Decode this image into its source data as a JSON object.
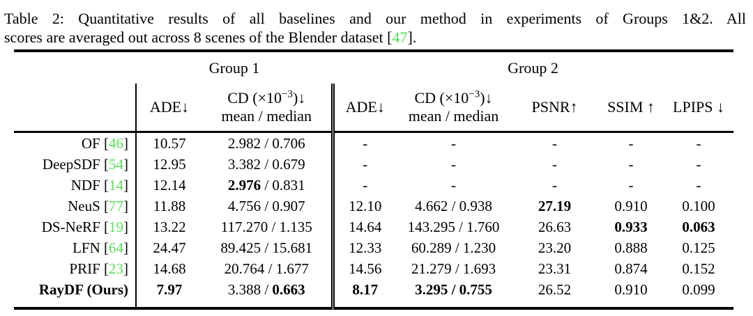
{
  "caption": {
    "line1": "Table 2: Quantitative results of all baselines and our method in experiments of Groups 1&2. All",
    "line2_before": "scores are averaged out across 8 scenes of the Blender dataset [",
    "line2_cite": "47",
    "line2_after": "]."
  },
  "colors": {
    "citation": "#58DF58"
  },
  "table": {
    "groups": [
      {
        "label": "Group 1"
      },
      {
        "label": "Group 2"
      }
    ],
    "columns": [
      {
        "label": "ADE↓"
      },
      {
        "line1_pre": "CD (×10",
        "line1_sup": "−3",
        "line1_post": ")↓",
        "line2": "mean / median"
      },
      {
        "label": "ADE↓"
      },
      {
        "line1_pre": "CD (×10",
        "line1_sup": "−3",
        "line1_post": ")↓",
        "line2": "mean / median"
      },
      {
        "label": "PSNR↑"
      },
      {
        "label": "SSIM ↑"
      },
      {
        "label": "LPIPS ↓"
      }
    ],
    "rows": [
      {
        "method": "OF",
        "cite": "46",
        "bold_method": false,
        "cells": [
          [
            {
              "t": "10.57"
            }
          ],
          [
            {
              "t": "2.982 / 0.706"
            }
          ],
          [
            {
              "t": "-"
            }
          ],
          [
            {
              "t": "-"
            }
          ],
          [
            {
              "t": "-"
            }
          ],
          [
            {
              "t": "-"
            }
          ],
          [
            {
              "t": "-"
            }
          ]
        ]
      },
      {
        "method": "DeepSDF",
        "cite": "54",
        "bold_method": false,
        "cells": [
          [
            {
              "t": "12.95"
            }
          ],
          [
            {
              "t": "3.382 / 0.679"
            }
          ],
          [
            {
              "t": "-"
            }
          ],
          [
            {
              "t": "-"
            }
          ],
          [
            {
              "t": "-"
            }
          ],
          [
            {
              "t": "-"
            }
          ],
          [
            {
              "t": "-"
            }
          ]
        ]
      },
      {
        "method": "NDF",
        "cite": "14",
        "bold_method": false,
        "cells": [
          [
            {
              "t": "12.14"
            }
          ],
          [
            {
              "t": "2.976",
              "b": true
            },
            {
              "t": " / 0.831"
            }
          ],
          [
            {
              "t": "-"
            }
          ],
          [
            {
              "t": "-"
            }
          ],
          [
            {
              "t": "-"
            }
          ],
          [
            {
              "t": "-"
            }
          ],
          [
            {
              "t": "-"
            }
          ]
        ]
      },
      {
        "method": "NeuS",
        "cite": "77",
        "bold_method": false,
        "cells": [
          [
            {
              "t": "11.88"
            }
          ],
          [
            {
              "t": "4.756 / 0.907"
            }
          ],
          [
            {
              "t": "12.10"
            }
          ],
          [
            {
              "t": "4.662 / 0.938"
            }
          ],
          [
            {
              "t": "27.19",
              "b": true
            }
          ],
          [
            {
              "t": "0.910"
            }
          ],
          [
            {
              "t": "0.100"
            }
          ]
        ]
      },
      {
        "method": "DS-NeRF",
        "cite": "19",
        "bold_method": false,
        "cells": [
          [
            {
              "t": "13.22"
            }
          ],
          [
            {
              "t": "117.270 / 1.135"
            }
          ],
          [
            {
              "t": "14.64"
            }
          ],
          [
            {
              "t": "143.295 / 1.760"
            }
          ],
          [
            {
              "t": "26.63"
            }
          ],
          [
            {
              "t": "0.933",
              "b": true
            }
          ],
          [
            {
              "t": "0.063",
              "b": true
            }
          ]
        ]
      },
      {
        "method": "LFN",
        "cite": "64",
        "bold_method": false,
        "cells": [
          [
            {
              "t": "24.47"
            }
          ],
          [
            {
              "t": "89.425 / 15.681"
            }
          ],
          [
            {
              "t": "12.33"
            }
          ],
          [
            {
              "t": "60.289 / 1.230"
            }
          ],
          [
            {
              "t": "23.20"
            }
          ],
          [
            {
              "t": "0.888"
            }
          ],
          [
            {
              "t": "0.125"
            }
          ]
        ]
      },
      {
        "method": "PRIF",
        "cite": "23",
        "bold_method": false,
        "cells": [
          [
            {
              "t": "14.68"
            }
          ],
          [
            {
              "t": "20.764 / 1.677"
            }
          ],
          [
            {
              "t": "14.56"
            }
          ],
          [
            {
              "t": "21.279 / 1.693"
            }
          ],
          [
            {
              "t": "23.31"
            }
          ],
          [
            {
              "t": "0.874"
            }
          ],
          [
            {
              "t": "0.152"
            }
          ]
        ]
      },
      {
        "method": "RayDF (Ours)",
        "cite": null,
        "bold_method": true,
        "cells": [
          [
            {
              "t": "7.97",
              "b": true
            }
          ],
          [
            {
              "t": "3.388 / "
            },
            {
              "t": "0.663",
              "b": true
            }
          ],
          [
            {
              "t": "8.17",
              "b": true
            }
          ],
          [
            {
              "t": "3.295 / 0.755",
              "b": true
            }
          ],
          [
            {
              "t": "26.52"
            }
          ],
          [
            {
              "t": "0.910"
            }
          ],
          [
            {
              "t": "0.099"
            }
          ]
        ]
      }
    ]
  }
}
